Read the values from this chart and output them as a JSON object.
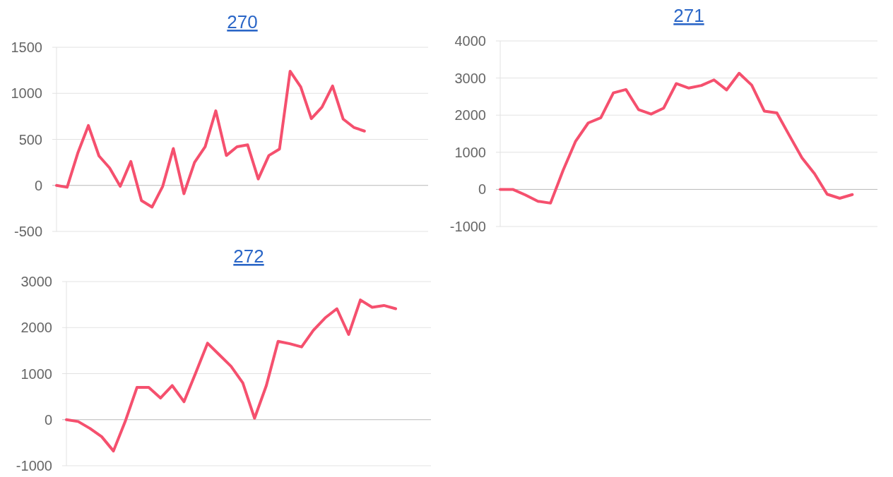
{
  "chart_data": [
    {
      "type": "line",
      "title": "270",
      "categories": [
        null,
        null,
        null,
        null,
        null,
        null,
        null,
        null,
        null,
        null,
        null,
        null,
        null,
        null,
        null,
        null,
        null,
        null,
        null,
        null,
        null,
        null,
        null,
        null,
        null,
        null,
        null,
        null,
        null,
        null,
        null,
        null,
        null,
        null,
        null,
        null
      ],
      "series": [
        {
          "color": "#f5506e",
          "values": [
            0,
            -20,
            350,
            650,
            320,
            190,
            -10,
            260,
            -165,
            -235,
            -10,
            400,
            -90,
            250,
            420,
            810,
            325,
            420,
            440,
            70,
            325,
            395,
            1240,
            1070,
            725,
            850,
            1080,
            720,
            630,
            590,
            null,
            null,
            null,
            null,
            null,
            null
          ]
        }
      ],
      "ylim": [
        -500,
        1500
      ],
      "yticks": [
        -500,
        0,
        500,
        1000,
        1500
      ],
      "grid": "y",
      "tick_labels": "y",
      "marker": "none",
      "line_style": "solid"
    },
    {
      "type": "line",
      "title": "271",
      "categories": [
        null,
        null,
        null,
        null,
        null,
        null,
        null,
        null,
        null,
        null,
        null,
        null,
        null,
        null,
        null,
        null,
        null,
        null,
        null,
        null,
        null,
        null,
        null,
        null,
        null,
        null,
        null,
        null,
        null,
        null,
        null
      ],
      "series": [
        {
          "color": "#f5506e",
          "values": [
            0,
            0,
            -150,
            -320,
            -370,
            510,
            1300,
            1790,
            1930,
            2600,
            2690,
            2150,
            2030,
            2190,
            2850,
            2730,
            2800,
            2950,
            2680,
            3130,
            2810,
            2110,
            2060,
            1450,
            850,
            420,
            -130,
            -240,
            -140,
            null,
            null
          ]
        }
      ],
      "ylim": [
        -1000,
        4000
      ],
      "yticks": [
        -1000,
        0,
        1000,
        2000,
        3000,
        4000
      ],
      "grid": "y",
      "tick_labels": "y",
      "marker": "none",
      "line_style": "solid"
    },
    {
      "type": "line",
      "title": "272",
      "categories": [
        null,
        null,
        null,
        null,
        null,
        null,
        null,
        null,
        null,
        null,
        null,
        null,
        null,
        null,
        null,
        null,
        null,
        null,
        null,
        null,
        null,
        null,
        null,
        null,
        null,
        null,
        null,
        null,
        null,
        null,
        null,
        null
      ],
      "series": [
        {
          "color": "#f5506e",
          "values": [
            0,
            -40,
            -190,
            -370,
            -680,
            -40,
            700,
            700,
            470,
            740,
            390,
            1020,
            1660,
            1410,
            1160,
            800,
            30,
            740,
            1700,
            1650,
            1580,
            1940,
            2210,
            2410,
            1850,
            2600,
            2440,
            2480,
            2410,
            null,
            null,
            null
          ]
        }
      ],
      "ylim": [
        -1000,
        3000
      ],
      "yticks": [
        -1000,
        0,
        1000,
        2000,
        3000
      ],
      "grid": "y",
      "tick_labels": "y",
      "marker": "none",
      "line_style": "solid"
    }
  ]
}
